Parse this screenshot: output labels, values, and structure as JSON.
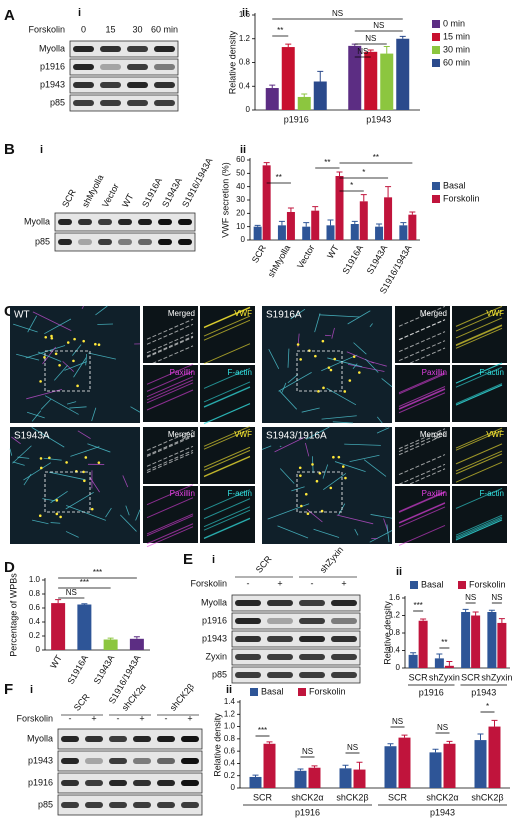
{
  "panel_labels": [
    "A",
    "B",
    "C",
    "D",
    "E",
    "F"
  ],
  "blots": [
    {
      "label": "i",
      "treatment": "Forskolin",
      "lanes": [
        "0",
        "15",
        "30",
        "60 min"
      ],
      "rows": [
        "Myolla",
        "p1916",
        "p1943",
        "p85"
      ]
    },
    {
      "label": "i",
      "lanes": [
        "SCR",
        "shMyolla",
        "Vector",
        "WT",
        "S1916A",
        "S1943A",
        "S1916/1943A"
      ],
      "rows": [
        "Myolla",
        "p85"
      ]
    },
    {
      "label": "i",
      "groups": [
        "SCR",
        "shZyxin"
      ],
      "treatment": "Forskolin",
      "lanes": [
        "-",
        "+",
        "-",
        "+"
      ],
      "rows": [
        "Myolla",
        "p1916",
        "p1943",
        "Zyxin",
        "p85"
      ]
    },
    {
      "label": "i",
      "groups": [
        "SCR",
        "shCK2α",
        "shCK2β"
      ],
      "treatment": "Forskolin",
      "lanes": [
        "-",
        "+",
        "-",
        "+",
        "-",
        "+"
      ],
      "rows": [
        "Myolla",
        "p1943",
        "p1916",
        "p85"
      ]
    }
  ],
  "micrographs": [
    {
      "label": "WT",
      "insets": [
        "Merged",
        "VWF",
        "Paxillin",
        "F-actin"
      ]
    },
    {
      "label": "S1916A",
      "insets": [
        "Merged",
        "VWF",
        "Paxillin",
        "F-actin"
      ]
    },
    {
      "label": "S1943A",
      "insets": [
        "Merged",
        "VWF",
        "Paxillin",
        "F-actin"
      ]
    },
    {
      "label": "S1943/1916A",
      "insets": [
        "Merged",
        "VWF",
        "Paxillin",
        "F-actin"
      ]
    }
  ],
  "chart_data": [
    {
      "type": "bar",
      "label": "ii",
      "ylabel": "Relative density",
      "categories": [
        "p1916",
        "p1943"
      ],
      "series": [
        {
          "name": "0 min",
          "color": "#5c2d83",
          "values": [
            0.37,
            1.08
          ],
          "errors": [
            0.05,
            0.03
          ]
        },
        {
          "name": "15 min",
          "color": "#c8102e",
          "values": [
            1.06,
            0.98
          ],
          "errors": [
            0.05,
            0.03
          ]
        },
        {
          "name": "30 min",
          "color": "#8cc63f",
          "values": [
            0.22,
            0.95
          ],
          "errors": [
            0.05,
            0.12
          ]
        },
        {
          "name": "60 min",
          "color": "#2b4a8c",
          "values": [
            0.48,
            1.2
          ],
          "errors": [
            0.17,
            0.04
          ]
        }
      ],
      "ylim": [
        0,
        1.6
      ],
      "yticks": [
        0,
        0.4,
        0.8,
        1.2,
        1.6
      ],
      "annotations": [
        "**",
        "NS",
        "NS",
        "NS",
        "NS"
      ]
    },
    {
      "type": "bar",
      "label": "ii",
      "ylabel": "VWF secretion (%)",
      "categories": [
        "SCR",
        "shMyolla",
        "Vector",
        "WT",
        "S1916A",
        "S1943A",
        "S1916/1943A"
      ],
      "series": [
        {
          "name": "Basal",
          "color": "#2e5597",
          "values": [
            10,
            11,
            10,
            11,
            12,
            10,
            11
          ],
          "errors": [
            1,
            3,
            3,
            4,
            2,
            2,
            2
          ]
        },
        {
          "name": "Forskolin",
          "color": "#c0143c",
          "values": [
            56,
            21,
            22,
            48,
            29,
            32,
            19
          ],
          "errors": [
            2,
            3,
            3,
            3,
            5,
            8,
            2
          ]
        }
      ],
      "ylim": [
        0,
        60
      ],
      "yticks": [
        0,
        10,
        20,
        30,
        40,
        50,
        60
      ],
      "annotations": [
        "**",
        "**",
        "*",
        "*",
        "**"
      ]
    },
    {
      "type": "bar",
      "ylabel": "Percentage of WPBs",
      "categories": [
        "WT",
        "S1916A",
        "S1943A",
        "S1916/1943A"
      ],
      "values": [
        0.67,
        0.65,
        0.15,
        0.16
      ],
      "errors": [
        0.05,
        0.01,
        0.02,
        0.03
      ],
      "colors": [
        "#c0143c",
        "#2e5597",
        "#8cc63f",
        "#5c2d83"
      ],
      "ylim": [
        0,
        1
      ],
      "yticks": [
        0,
        0.2,
        0.4,
        0.6,
        0.8,
        {
          "value": 1,
          "label": "1.0"
        }
      ],
      "annotations": [
        "NS",
        "***",
        "***"
      ]
    },
    {
      "type": "bar",
      "label": "ii",
      "ylabel": "Relative density",
      "categories": [
        "SCR",
        "shZyxin",
        "SCR",
        "shZyxin"
      ],
      "groups": [
        "p1916",
        "p1943"
      ],
      "series": [
        {
          "name": "Basal",
          "color": "#2e5597",
          "values": [
            0.3,
            0.22,
            1.28,
            1.28
          ],
          "errors": [
            0.05,
            0.1,
            0.06,
            0.04
          ]
        },
        {
          "name": "Forskolin",
          "color": "#c0143c",
          "values": [
            1.08,
            0.05,
            1.2,
            1.03
          ],
          "errors": [
            0.04,
            0.1,
            0.08,
            0.1
          ]
        }
      ],
      "ylim": [
        0,
        1.6
      ],
      "yticks": [
        0,
        0.4,
        0.8,
        1.2,
        1.6
      ],
      "annotations": [
        "***",
        "**",
        "NS",
        "NS"
      ]
    },
    {
      "type": "bar",
      "label": "ii",
      "ylabel": "Relative density",
      "categories": [
        "SCR",
        "shCK2α",
        "shCK2β",
        "SCR",
        "shCK2α",
        "shCK2β"
      ],
      "groups": [
        "p1916",
        "p1943"
      ],
      "series": [
        {
          "name": "Basal",
          "color": "#2e5597",
          "values": [
            0.18,
            0.28,
            0.32,
            0.68,
            0.58,
            0.78
          ],
          "errors": [
            0.03,
            0.03,
            0.05,
            0.04,
            0.05,
            0.1
          ]
        },
        {
          "name": "Forskolin",
          "color": "#c0143c",
          "values": [
            0.72,
            0.33,
            0.3,
            0.82,
            0.72,
            1.0
          ],
          "errors": [
            0.03,
            0.03,
            0.12,
            0.04,
            0.04,
            0.1
          ]
        }
      ],
      "ylim": [
        0,
        1.4
      ],
      "yticks": [
        0,
        0.2,
        0.4,
        0.6,
        0.8,
        {
          "value": 1,
          "label": "1.0"
        },
        1.2,
        1.4
      ],
      "annotations": [
        "***",
        "NS",
        "NS",
        "NS",
        "NS",
        "*"
      ]
    }
  ]
}
